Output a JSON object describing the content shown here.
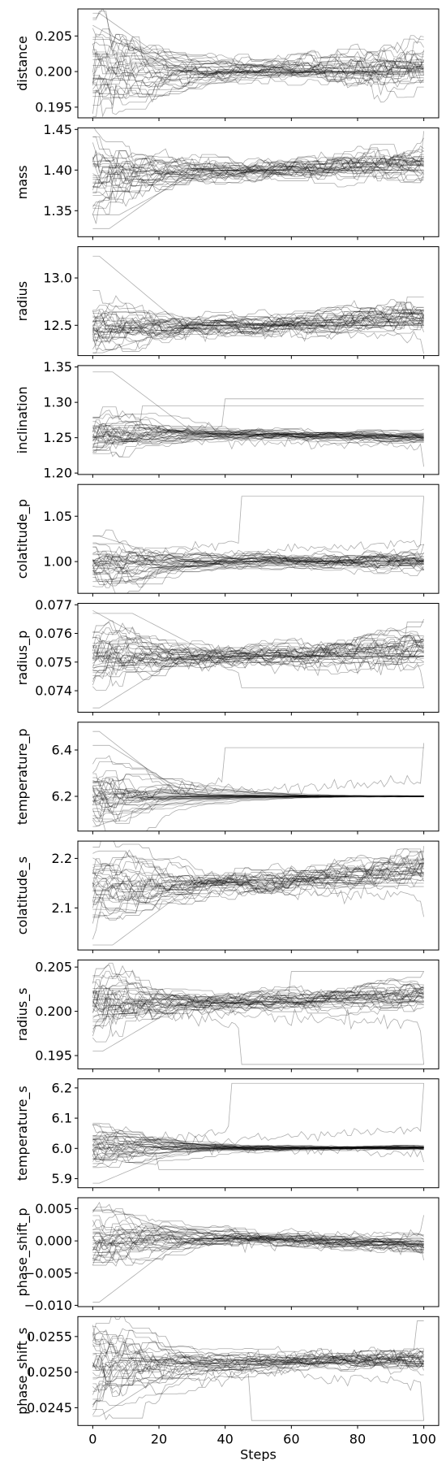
{
  "chart_data": {
    "type": "line",
    "xlabel": "Steps",
    "x_range": [
      0,
      100
    ],
    "x_ticks": [
      0,
      20,
      40,
      60,
      80,
      100
    ],
    "n_walkers": 32,
    "line_color": "#000000",
    "grid": false,
    "panels": [
      {
        "ylabel": "distance",
        "ylim": [
          0.1935,
          0.2088
        ],
        "yticks": [
          0.195,
          0.2,
          0.205
        ],
        "tick_labels": [
          "0.195",
          "0.200",
          "0.205"
        ],
        "start": 0.2,
        "center": 0.2,
        "spread_start": 0.0035,
        "spread_mid": 0.0008,
        "spread_end": 0.0022,
        "drift": 0.0005,
        "outliers": [
          [
            0,
            0.2065
          ],
          [
            2,
            0.2082
          ],
          [
            5,
            0.2045
          ],
          [
            40,
            0.1998
          ]
        ]
      },
      {
        "ylabel": "mass",
        "ylim": [
          1.318,
          1.452
        ],
        "yticks": [
          1.35,
          1.4,
          1.45
        ],
        "tick_labels": [
          "1.35",
          "1.40",
          "1.45"
        ],
        "start": 1.395,
        "center": 1.4,
        "spread_start": 0.026,
        "spread_mid": 0.007,
        "spread_end": 0.012,
        "drift": 0.009,
        "outliers": [
          [
            5,
            1.328
          ],
          [
            8,
            1.345
          ],
          [
            100,
            1.448
          ]
        ]
      },
      {
        "ylabel": "radius",
        "ylim": [
          12.18,
          13.33
        ],
        "yticks": [
          12.5,
          13.0
        ],
        "tick_labels": [
          "12.5",
          "13.0"
        ],
        "start": 12.45,
        "center": 12.5,
        "spread_start": 0.16,
        "spread_mid": 0.06,
        "spread_end": 0.1,
        "drift": 0.07,
        "outliers": [
          [
            2,
            13.23
          ],
          [
            3,
            12.21
          ],
          [
            100,
            12.2
          ],
          [
            95,
            12.8
          ]
        ]
      },
      {
        "ylabel": "inclination",
        "ylim": [
          1.198,
          1.352
        ],
        "yticks": [
          1.2,
          1.25,
          1.3,
          1.35
        ],
        "tick_labels": [
          "1.20",
          "1.25",
          "1.30",
          "1.35"
        ],
        "start": 1.25,
        "center": 1.255,
        "spread_start": 0.018,
        "spread_mid": 0.004,
        "spread_end": 0.004,
        "drift": -0.007,
        "outliers": [
          [
            6,
            1.343
          ],
          [
            15,
            1.295
          ],
          [
            40,
            1.305
          ],
          [
            100,
            1.209
          ]
        ]
      },
      {
        "ylabel": "colatitude_p",
        "ylim": [
          0.965,
          1.085
        ],
        "yticks": [
          1.0,
          1.05
        ],
        "tick_labels": [
          "1.00",
          "1.05"
        ],
        "start": 1.0,
        "center": 1.0,
        "spread_start": 0.014,
        "spread_mid": 0.004,
        "spread_end": 0.008,
        "drift": 0.0,
        "outliers": [
          [
            45,
            1.072
          ],
          [
            100,
            1.072
          ],
          [
            2,
            1.028
          ],
          [
            10,
            0.978
          ]
        ]
      },
      {
        "ylabel": "radius_p",
        "ylim": [
          0.07325,
          0.07705
        ],
        "yticks": [
          0.074,
          0.075,
          0.076,
          0.077
        ],
        "tick_labels": [
          "0.074",
          "0.075",
          "0.076",
          "0.077"
        ],
        "start": 0.0751,
        "center": 0.0752,
        "spread_start": 0.0006,
        "spread_mid": 0.0002,
        "spread_end": 0.0004,
        "drift": 0.0003,
        "outliers": [
          [
            0,
            0.0768
          ],
          [
            12,
            0.0767
          ],
          [
            2,
            0.0734
          ],
          [
            45,
            0.0741
          ],
          [
            100,
            0.0741
          ],
          [
            95,
            0.0764
          ]
        ]
      },
      {
        "ylabel": "temperature_p",
        "ylim": [
          6.05,
          6.52
        ],
        "yticks": [
          6.2,
          6.4
        ],
        "tick_labels": [
          "6.2",
          "6.4"
        ],
        "start": 6.2,
        "center": 6.2,
        "spread_start": 0.07,
        "spread_mid": 0.002,
        "spread_end": 0.001,
        "drift": 0.0,
        "outliers": [
          [
            2,
            6.48
          ],
          [
            5,
            6.42
          ],
          [
            100,
            6.43
          ],
          [
            40,
            6.41
          ],
          [
            1,
            6.07
          ]
        ]
      },
      {
        "ylabel": "colatitude_s",
        "ylim": [
          2.015,
          2.235
        ],
        "yticks": [
          2.1,
          2.2
        ],
        "tick_labels": [
          "2.1",
          "2.2"
        ],
        "start": 2.145,
        "center": 2.15,
        "spread_start": 0.035,
        "spread_mid": 0.014,
        "spread_end": 0.02,
        "drift": 0.03,
        "outliers": [
          [
            6,
            2.025
          ],
          [
            100,
            2.082
          ],
          [
            100,
            2.225
          ]
        ]
      },
      {
        "ylabel": "radius_s",
        "ylim": [
          0.1935,
          0.2058
        ],
        "yticks": [
          0.195,
          0.2,
          0.205
        ],
        "tick_labels": [
          "0.195",
          "0.200",
          "0.205"
        ],
        "start": 0.2005,
        "center": 0.201,
        "spread_start": 0.0022,
        "spread_mid": 0.0006,
        "spread_end": 0.001,
        "drift": 0.001,
        "outliers": [
          [
            3,
            0.1955
          ],
          [
            45,
            0.194
          ],
          [
            100,
            0.194
          ],
          [
            60,
            0.2045
          ]
        ]
      },
      {
        "ylabel": "temperature_s",
        "ylim": [
          5.87,
          6.23
        ],
        "yticks": [
          5.9,
          6.0,
          6.1,
          6.2
        ],
        "tick_labels": [
          "5.9",
          "6.0",
          "6.1",
          "6.2"
        ],
        "start": 6.0,
        "center": 6.0,
        "spread_start": 0.04,
        "spread_mid": 0.004,
        "spread_end": 0.003,
        "drift": 0.003,
        "outliers": [
          [
            42,
            6.215
          ],
          [
            100,
            6.215
          ],
          [
            2,
            5.885
          ],
          [
            20,
            5.93
          ],
          [
            100,
            5.955
          ]
        ]
      },
      {
        "ylabel": "phase_shift_p",
        "ylim": [
          -0.0102,
          0.0067
        ],
        "yticks": [
          -0.01,
          -0.005,
          0.0,
          0.005
        ],
        "tick_labels": [
          "−0.010",
          "−0.005",
          "0.000",
          "0.005"
        ],
        "start": 0.0,
        "center": 0.0003,
        "spread_start": 0.0022,
        "spread_mid": 0.0006,
        "spread_end": 0.0007,
        "drift": -0.0011,
        "outliers": [
          [
            2,
            -0.0095
          ],
          [
            6,
            0.0048
          ],
          [
            100,
            0.004
          ],
          [
            100,
            -0.003
          ]
        ]
      },
      {
        "ylabel": "phase_shift_s",
        "ylim": [
          0.02425,
          0.02578
        ],
        "yticks": [
          0.0245,
          0.025,
          0.0255
        ],
        "tick_labels": [
          "0.0245",
          "0.0250",
          "0.0255"
        ],
        "start": 0.0251,
        "center": 0.02512,
        "spread_start": 0.0003,
        "spread_mid": 6e-05,
        "spread_end": 0.00012,
        "drift": 8e-05,
        "outliers": [
          [
            2,
            0.02438
          ],
          [
            48,
            0.02432
          ],
          [
            100,
            0.02432
          ],
          [
            98,
            0.02572
          ]
        ]
      }
    ]
  }
}
